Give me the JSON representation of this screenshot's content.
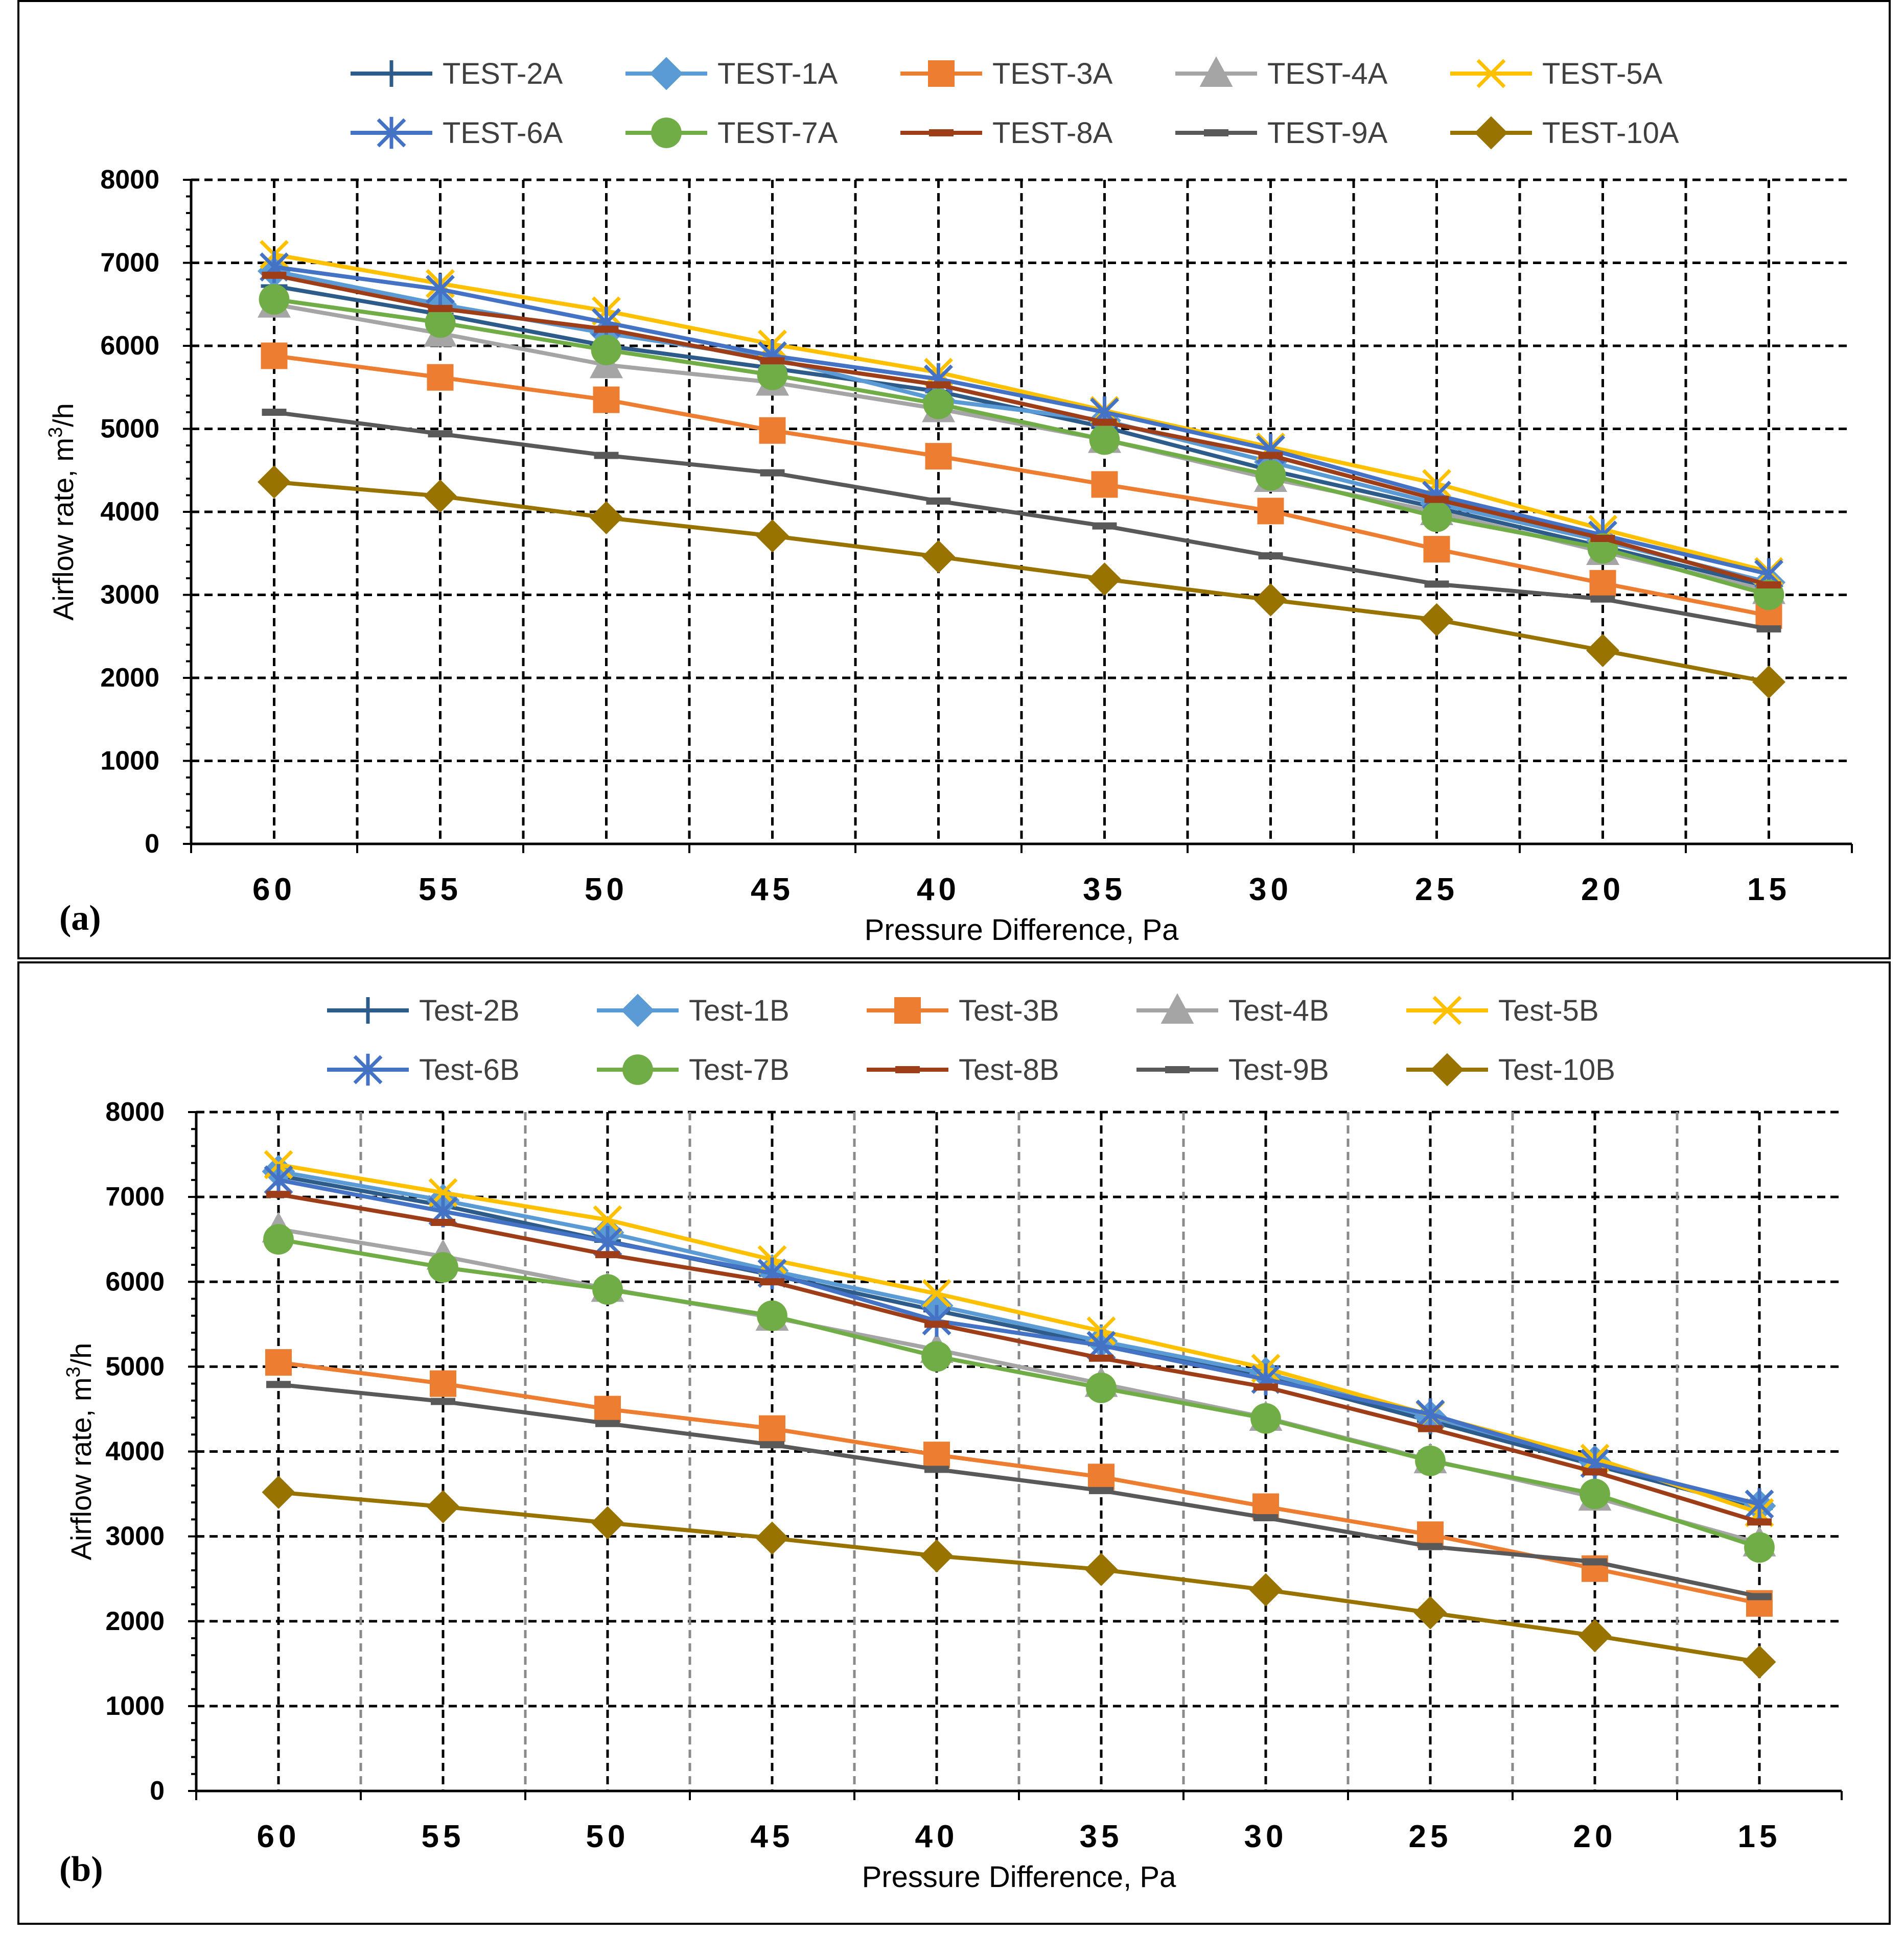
{
  "chart_data": [
    {
      "type": "line",
      "panel_label": "(a)",
      "xlabel": "Pressure Difference, Pa",
      "ylabel": "Airflow rate, m",
      "ylabel_sup": "3",
      "ylabel_tail": "/h",
      "x": [
        60,
        55,
        50,
        45,
        40,
        35,
        30,
        25,
        20,
        15
      ],
      "x_tick_labels": [
        "60",
        "55",
        "50",
        "45",
        "40",
        "35",
        "30",
        "25",
        "20",
        "15"
      ],
      "ylim": [
        0,
        8000
      ],
      "y_ticks": [
        0,
        1000,
        2000,
        3000,
        4000,
        5000,
        6000,
        7000,
        8000
      ],
      "y_tick_labels": [
        "0",
        "1000",
        "2000",
        "3000",
        "4000",
        "5000",
        "6000",
        "7000",
        "8000"
      ],
      "grid": true,
      "legend_position": "top",
      "series": [
        {
          "name": "TEST-2A",
          "color": "#2E5C8A",
          "marker": "plus",
          "values": [
            6720,
            6380,
            6000,
            5730,
            5450,
            5020,
            4500,
            4050,
            3580,
            3100
          ]
        },
        {
          "name": "TEST-1A",
          "color": "#5B9BD5",
          "marker": "diamond",
          "values": [
            6900,
            6500,
            6150,
            5850,
            5350,
            5100,
            4600,
            4100,
            3650,
            3150
          ]
        },
        {
          "name": "TEST-3A",
          "color": "#ED7D31",
          "marker": "square",
          "values": [
            5880,
            5620,
            5350,
            4980,
            4670,
            4330,
            4010,
            3550,
            3140,
            2750
          ]
        },
        {
          "name": "TEST-4A",
          "color": "#A5A5A5",
          "marker": "triangle",
          "values": [
            6500,
            6150,
            5770,
            5560,
            5240,
            4870,
            4400,
            4000,
            3520,
            3050
          ]
        },
        {
          "name": "TEST-5A",
          "color": "#FFC000",
          "marker": "x",
          "values": [
            7100,
            6750,
            6420,
            6020,
            5680,
            5220,
            4780,
            4340,
            3790,
            3280
          ]
        },
        {
          "name": "TEST-6A",
          "color": "#4472C4",
          "marker": "asterisk",
          "values": [
            6950,
            6680,
            6280,
            5880,
            5600,
            5200,
            4750,
            4200,
            3720,
            3250
          ]
        },
        {
          "name": "TEST-7A",
          "color": "#70AD47",
          "marker": "circle",
          "values": [
            6560,
            6280,
            5950,
            5650,
            5300,
            4870,
            4440,
            3940,
            3560,
            3000
          ]
        },
        {
          "name": "TEST-8A",
          "color": "#9E3E18",
          "marker": "dash",
          "values": [
            6850,
            6450,
            6200,
            5820,
            5530,
            5080,
            4680,
            4150,
            3680,
            3120
          ]
        },
        {
          "name": "TEST-9A",
          "color": "#595959",
          "marker": "dash",
          "values": [
            5200,
            4940,
            4680,
            4470,
            4130,
            3830,
            3470,
            3130,
            2950,
            2590
          ]
        },
        {
          "name": "TEST-10A",
          "color": "#997300",
          "marker": "diamond",
          "values": [
            4360,
            4190,
            3930,
            3710,
            3460,
            3190,
            2940,
            2700,
            2330,
            1950
          ]
        }
      ]
    },
    {
      "type": "line",
      "panel_label": "(b)",
      "xlabel": "Pressure Difference, Pa",
      "ylabel": "Airflow rate, m",
      "ylabel_sup": "3",
      "ylabel_tail": "/h",
      "x": [
        60,
        55,
        50,
        45,
        40,
        35,
        30,
        25,
        20,
        15
      ],
      "x_tick_labels": [
        "60",
        "55",
        "50",
        "45",
        "40",
        "35",
        "30",
        "25",
        "20",
        "15"
      ],
      "ylim": [
        0,
        8000
      ],
      "y_ticks": [
        0,
        1000,
        2000,
        3000,
        4000,
        5000,
        6000,
        7000,
        8000
      ],
      "y_tick_labels": [
        "0",
        "1000",
        "2000",
        "3000",
        "4000",
        "5000",
        "6000",
        "7000",
        "8000"
      ],
      "grid": true,
      "legend_position": "top",
      "series": [
        {
          "name": "Test-2B",
          "color": "#2E5C8A",
          "marker": "plus",
          "values": [
            7250,
            6900,
            6480,
            6080,
            5660,
            5260,
            4880,
            4360,
            3840,
            3330
          ]
        },
        {
          "name": "Test-1B",
          "color": "#5B9BD5",
          "marker": "diamond",
          "values": [
            7300,
            6960,
            6580,
            6130,
            5720,
            5300,
            4920,
            4410,
            3880,
            3360
          ]
        },
        {
          "name": "Test-3B",
          "color": "#ED7D31",
          "marker": "square",
          "values": [
            5050,
            4800,
            4500,
            4270,
            3960,
            3700,
            3350,
            3020,
            2620,
            2210
          ]
        },
        {
          "name": "Test-4B",
          "color": "#A5A5A5",
          "marker": "triangle",
          "values": [
            6620,
            6300,
            5920,
            5580,
            5200,
            4800,
            4400,
            3900,
            3460,
            2920
          ]
        },
        {
          "name": "Test-5B",
          "color": "#FFC000",
          "marker": "x",
          "values": [
            7380,
            7050,
            6730,
            6260,
            5860,
            5420,
            4980,
            4430,
            3920,
            3280
          ]
        },
        {
          "name": "Test-6B",
          "color": "#4472C4",
          "marker": "asterisk",
          "values": [
            7200,
            6830,
            6470,
            6100,
            5540,
            5250,
            4850,
            4440,
            3860,
            3380
          ]
        },
        {
          "name": "Test-7B",
          "color": "#70AD47",
          "marker": "circle",
          "values": [
            6500,
            6170,
            5910,
            5600,
            5120,
            4750,
            4390,
            3890,
            3500,
            2870
          ]
        },
        {
          "name": "Test-8B",
          "color": "#9E3E18",
          "marker": "dash",
          "values": [
            7030,
            6700,
            6320,
            6000,
            5500,
            5100,
            4760,
            4270,
            3760,
            3170
          ]
        },
        {
          "name": "Test-9B",
          "color": "#595959",
          "marker": "dash",
          "values": [
            4790,
            4590,
            4330,
            4080,
            3790,
            3540,
            3220,
            2880,
            2700,
            2290
          ]
        },
        {
          "name": "Test-10B",
          "color": "#997300",
          "marker": "diamond",
          "values": [
            3520,
            3350,
            3160,
            2980,
            2770,
            2610,
            2370,
            2100,
            1830,
            1520
          ]
        }
      ]
    }
  ]
}
